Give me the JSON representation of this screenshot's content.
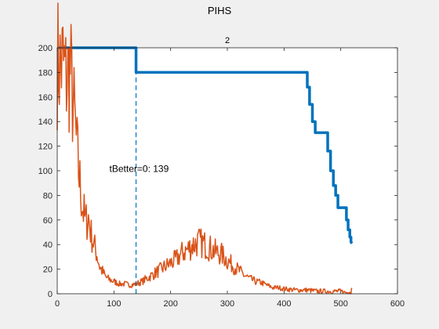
{
  "figure": {
    "title": "PIHS"
  },
  "chart_data": {
    "type": "line",
    "title": "2",
    "xlabel": "",
    "ylabel": "",
    "xlim": [
      0,
      600
    ],
    "ylim": [
      0,
      200
    ],
    "xticks": [
      0,
      100,
      200,
      300,
      400,
      500,
      600
    ],
    "yticks": [
      0,
      20,
      40,
      60,
      80,
      100,
      120,
      140,
      160,
      180,
      200
    ],
    "grid": false,
    "colors": {
      "blue": "#0072BD",
      "orange": "#D95319",
      "background": "#f0f0f0",
      "axes": "#ffffff"
    },
    "series": [
      {
        "color": "#0072BD",
        "style": "step-thick",
        "points": [
          [
            0,
            200
          ],
          [
            139,
            200
          ],
          [
            139,
            180
          ],
          [
            441,
            180
          ],
          [
            441,
            168
          ],
          [
            445,
            168
          ],
          [
            445,
            154
          ],
          [
            450,
            154
          ],
          [
            450,
            140
          ],
          [
            455,
            140
          ],
          [
            455,
            131
          ],
          [
            477,
            131
          ],
          [
            477,
            116
          ],
          [
            482,
            116
          ],
          [
            482,
            100
          ],
          [
            487,
            100
          ],
          [
            487,
            88
          ],
          [
            491,
            88
          ],
          [
            491,
            80
          ],
          [
            495,
            80
          ],
          [
            495,
            70
          ],
          [
            510,
            70
          ],
          [
            510,
            60
          ],
          [
            513,
            60
          ],
          [
            513,
            52
          ],
          [
            516,
            52
          ],
          [
            516,
            46
          ],
          [
            518,
            46
          ],
          [
            518,
            42
          ],
          [
            520,
            41
          ]
        ]
      },
      {
        "color": "#D95319",
        "style": "noisy",
        "points": [
          [
            0,
            190
          ],
          [
            5,
            185
          ],
          [
            10,
            188
          ],
          [
            15,
            175
          ],
          [
            20,
            178
          ],
          [
            23,
            182
          ],
          [
            27,
            160
          ],
          [
            31,
            140
          ],
          [
            35,
            115
          ],
          [
            40,
            90
          ],
          [
            45,
            70
          ],
          [
            50,
            58
          ],
          [
            55,
            62
          ],
          [
            60,
            48
          ],
          [
            65,
            40
          ],
          [
            70,
            32
          ],
          [
            75,
            22
          ],
          [
            80,
            18
          ],
          [
            85,
            14
          ],
          [
            90,
            12
          ],
          [
            100,
            10
          ],
          [
            110,
            8
          ],
          [
            120,
            8
          ],
          [
            130,
            7
          ],
          [
            139,
            8
          ],
          [
            150,
            10
          ],
          [
            160,
            13
          ],
          [
            170,
            16
          ],
          [
            180,
            19
          ],
          [
            190,
            22
          ],
          [
            200,
            25
          ],
          [
            210,
            28
          ],
          [
            220,
            33
          ],
          [
            230,
            36
          ],
          [
            240,
            40
          ],
          [
            250,
            42
          ],
          [
            260,
            40
          ],
          [
            270,
            37
          ],
          [
            280,
            34
          ],
          [
            290,
            32
          ],
          [
            300,
            27
          ],
          [
            310,
            23
          ],
          [
            320,
            19
          ],
          [
            330,
            15
          ],
          [
            340,
            12
          ],
          [
            350,
            10
          ],
          [
            360,
            9
          ],
          [
            370,
            7
          ],
          [
            380,
            5
          ],
          [
            390,
            5
          ],
          [
            400,
            4
          ],
          [
            420,
            3
          ],
          [
            440,
            3
          ],
          [
            460,
            2
          ],
          [
            480,
            2
          ],
          [
            500,
            2
          ],
          [
            510,
            1
          ],
          [
            517,
            1
          ],
          [
            520,
            4
          ]
        ]
      },
      {
        "color": "#0072BD",
        "style": "dashed",
        "points": [
          [
            139,
            0
          ],
          [
            139,
            180
          ]
        ]
      }
    ],
    "annotations": [
      {
        "text": "tBetter=0: 139",
        "x": 92,
        "y": 99
      }
    ]
  }
}
